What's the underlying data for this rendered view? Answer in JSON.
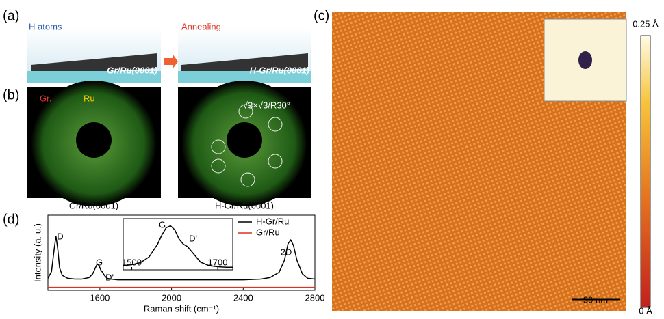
{
  "panels": {
    "a": {
      "label": "(a)",
      "h_atoms": "H atoms",
      "annealing": "Annealing",
      "left": "Gr/Ru(0001)",
      "right": "H-Gr/Ru(0001)"
    },
    "b": {
      "label": "(b)",
      "gr": "Gr.",
      "ru": "Ru",
      "sqrt3": "√3×√3/R30°",
      "left": "Gr/Ru(0001)",
      "right": "H-Gr/Ru(0001)"
    },
    "c": {
      "label": "(c)",
      "cbar_top": "0.25 Å",
      "cbar_bottom": "0 Å",
      "scalebar": "30 nm"
    },
    "d": {
      "label": "(d)"
    }
  },
  "chart_data": [
    {
      "type": "line",
      "xlabel": "Raman shift (cm⁻¹)",
      "ylabel": "Intensity (a. u.)",
      "xlim": [
        1310,
        2800
      ],
      "ylim": [
        0,
        1
      ],
      "xticks": [
        1600,
        2000,
        2400,
        2800
      ],
      "legend": "upper right",
      "annotations": [
        "D",
        "G",
        "D'",
        "2D"
      ],
      "x": [
        1310,
        1330,
        1345,
        1355,
        1365,
        1375,
        1390,
        1420,
        1460,
        1500,
        1540,
        1560,
        1575,
        1585,
        1595,
        1605,
        1615,
        1625,
        1640,
        1660,
        1700,
        1800,
        1900,
        2000,
        2100,
        2200,
        2300,
        2400,
        2500,
        2550,
        2600,
        2630,
        2650,
        2665,
        2680,
        2700,
        2730,
        2760,
        2800
      ],
      "series": [
        {
          "name": "H-Gr/Ru",
          "color": "#000000",
          "values": [
            0.16,
            0.25,
            0.55,
            0.72,
            0.55,
            0.3,
            0.2,
            0.16,
            0.15,
            0.15,
            0.17,
            0.22,
            0.3,
            0.35,
            0.33,
            0.27,
            0.24,
            0.2,
            0.16,
            0.15,
            0.14,
            0.14,
            0.14,
            0.14,
            0.14,
            0.14,
            0.14,
            0.14,
            0.15,
            0.17,
            0.24,
            0.4,
            0.62,
            0.67,
            0.6,
            0.4,
            0.22,
            0.16,
            0.15
          ]
        },
        {
          "name": "Gr/Ru",
          "color": "#e0301e",
          "values": [
            0.04,
            0.04,
            0.04,
            0.04,
            0.04,
            0.04,
            0.04,
            0.04,
            0.04,
            0.04,
            0.04,
            0.04,
            0.04,
            0.04,
            0.04,
            0.04,
            0.04,
            0.04,
            0.04,
            0.04,
            0.04,
            0.04,
            0.04,
            0.04,
            0.04,
            0.04,
            0.04,
            0.04,
            0.04,
            0.04,
            0.04,
            0.04,
            0.04,
            0.04,
            0.04,
            0.04,
            0.04,
            0.04,
            0.04
          ]
        }
      ]
    },
    {
      "type": "line",
      "xlim": [
        1480,
        1735
      ],
      "ylim": [
        0,
        1
      ],
      "xticks": [
        1500,
        1700
      ],
      "annotations": [
        "G",
        "D'"
      ],
      "x": [
        1480,
        1500,
        1520,
        1540,
        1560,
        1570,
        1580,
        1590,
        1600,
        1610,
        1620,
        1630,
        1640,
        1660,
        1680,
        1700,
        1720,
        1735
      ],
      "series": [
        {
          "color": "#000000",
          "values": [
            0.08,
            0.1,
            0.14,
            0.25,
            0.5,
            0.68,
            0.82,
            0.86,
            0.78,
            0.6,
            0.5,
            0.45,
            0.35,
            0.15,
            0.08,
            0.06,
            0.05,
            0.05
          ]
        }
      ]
    }
  ]
}
